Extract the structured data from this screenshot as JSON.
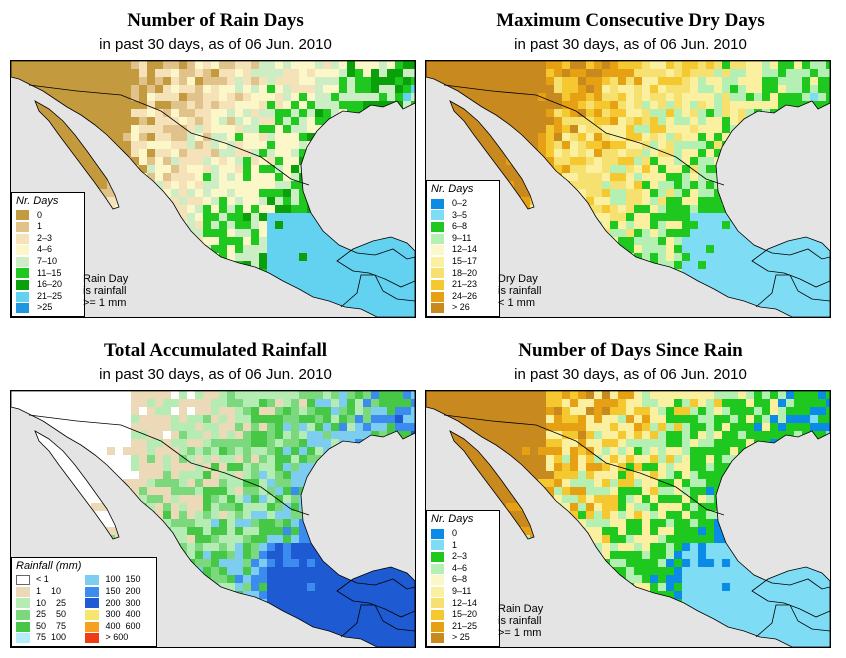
{
  "panels": [
    {
      "title": "Number of Rain Days",
      "subtitle": "in past 30 days, as of  06 Jun. 2010",
      "legend_title": "Nr. Days",
      "legend": [
        {
          "label": "0",
          "color": "#c49a3e"
        },
        {
          "label": "1",
          "color": "#e0c28a"
        },
        {
          "label": "2–3",
          "color": "#f5e2b8"
        },
        {
          "label": "4–6",
          "color": "#fbf7c8"
        },
        {
          "label": "7–10",
          "color": "#cdeec4"
        },
        {
          "label": "11–15",
          "color": "#1ec81e"
        },
        {
          "label": "16–20",
          "color": "#0aa00a"
        },
        {
          "label": "21–25",
          "color": "#63d2f0"
        },
        {
          "label": ">25",
          "color": "#1e96e0"
        }
      ],
      "note": [
        "Rain Day",
        "is rainfall",
        ">= 1 mm"
      ]
    },
    {
      "title": "Maximum Consecutive Dry Days",
      "subtitle": "in past 30 days, as of  06 Jun. 2010",
      "legend_title": "Nr. Days",
      "legend": [
        {
          "label": "0–2",
          "color": "#0a8ce6"
        },
        {
          "label": "3–5",
          "color": "#7fdcf5"
        },
        {
          "label": "6–8",
          "color": "#1ec81e"
        },
        {
          "label": "9–11",
          "color": "#b4f0b4"
        },
        {
          "label": "12–14",
          "color": "#fbf7c8"
        },
        {
          "label": "15–17",
          "color": "#faf0a0"
        },
        {
          "label": "18–20",
          "color": "#f5e070"
        },
        {
          "label": "21–23",
          "color": "#f5c830"
        },
        {
          "label": "24–26",
          "color": "#e6a014"
        },
        {
          "label": "> 26",
          "color": "#c88a1e"
        }
      ],
      "note": [
        "Dry Day",
        "is rainfall",
        "< 1 mm"
      ]
    },
    {
      "title": "Total Accumulated Rainfall",
      "subtitle": "in past 30 days, as of  06 Jun. 2010",
      "legend_title": "Rainfall (mm)",
      "legend_cols": [
        [
          {
            "label": "< 1",
            "color": "#ffffff"
          },
          {
            "label": "1    10",
            "color": "#ecd9b8"
          },
          {
            "label": "10    25",
            "color": "#b4ecb4"
          },
          {
            "label": "25    50",
            "color": "#7cd87c"
          },
          {
            "label": "50    75",
            "color": "#46c846"
          },
          {
            "label": "75  100",
            "color": "#b4eef8"
          }
        ],
        [
          {
            "label": "100  150",
            "color": "#7ccdf0"
          },
          {
            "label": "150  200",
            "color": "#3c8cf0"
          },
          {
            "label": "200  300",
            "color": "#1e5ad2"
          },
          {
            "label": "300  400",
            "color": "#f5e66e"
          },
          {
            "label": "400  600",
            "color": "#f5a01e"
          },
          {
            "label": "> 600",
            "color": "#f03c14"
          }
        ]
      ]
    },
    {
      "title": "Number of Days Since Rain",
      "subtitle": "in past 30 days, as of  06 Jun. 2010",
      "legend_title": "Nr. Days",
      "legend": [
        {
          "label": "0",
          "color": "#0a8ce6"
        },
        {
          "label": "1",
          "color": "#7fdcf5"
        },
        {
          "label": "2–3",
          "color": "#1ec81e"
        },
        {
          "label": "4–6",
          "color": "#b4f0b4"
        },
        {
          "label": "6–8",
          "color": "#fbf7c8"
        },
        {
          "label": "9–11",
          "color": "#faf0a0"
        },
        {
          "label": "12–14",
          "color": "#f5e070"
        },
        {
          "label": "15–20",
          "color": "#f5c830"
        },
        {
          "label": "21–25",
          "color": "#e6a014"
        },
        {
          "label": "> 25",
          "color": "#c88a1e"
        }
      ],
      "note": [
        "Rain Day",
        "is rainfall",
        ">= 1 mm"
      ]
    }
  ]
}
